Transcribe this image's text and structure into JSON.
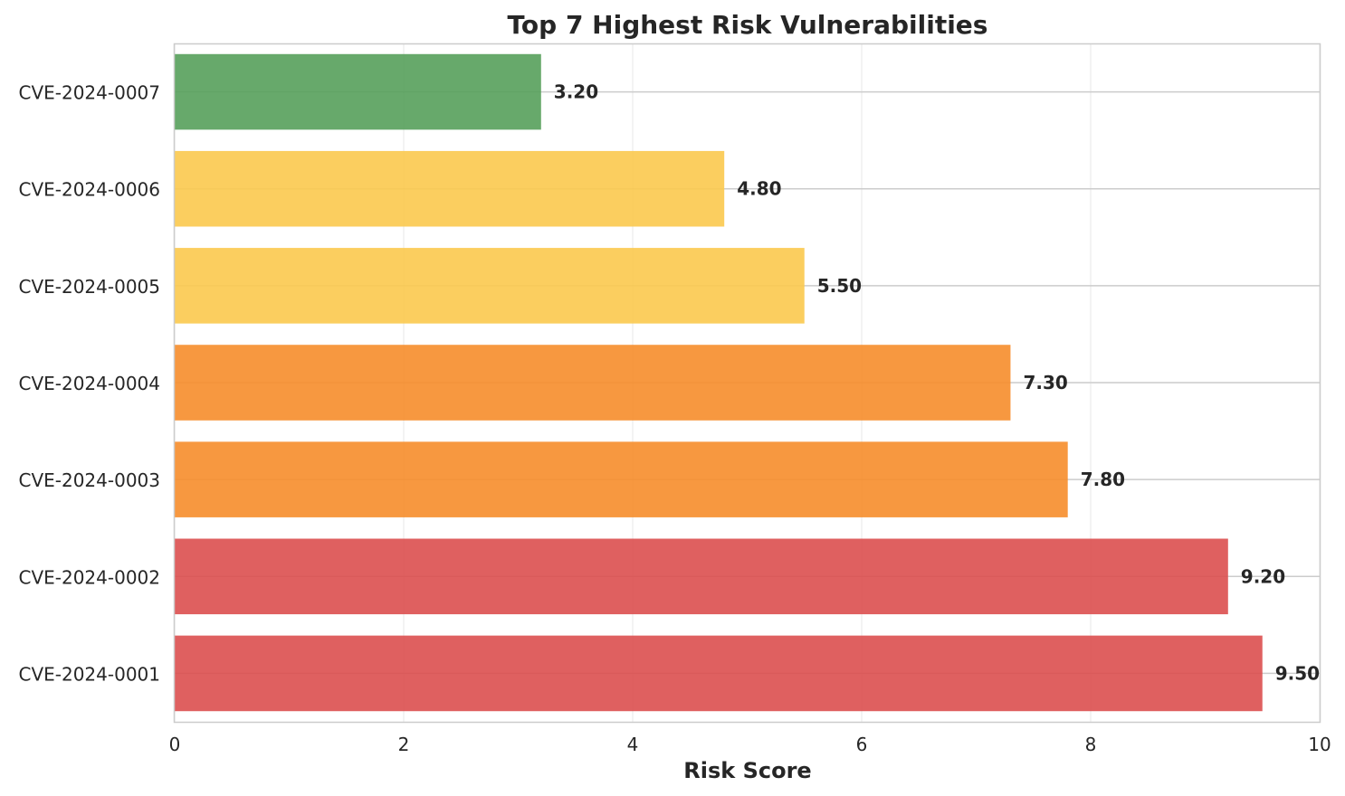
{
  "chart_data": {
    "type": "bar",
    "orientation": "horizontal",
    "title": "Top 7 Highest Risk Vulnerabilities",
    "xlabel": "Risk Score",
    "ylabel": "",
    "xlim": [
      0,
      10
    ],
    "xticks": [
      "0",
      "2",
      "4",
      "6",
      "8",
      "10"
    ],
    "grid": true,
    "categories": [
      "CVE-2024-0007",
      "CVE-2024-0006",
      "CVE-2024-0005",
      "CVE-2024-0004",
      "CVE-2024-0003",
      "CVE-2024-0002",
      "CVE-2024-0001"
    ],
    "values": [
      3.2,
      4.8,
      5.5,
      7.3,
      7.8,
      9.2,
      9.5
    ],
    "value_labels": [
      "3.20",
      "4.80",
      "5.50",
      "7.30",
      "7.80",
      "9.20",
      "9.50"
    ],
    "colors": [
      "#57a05b",
      "#fbc94e",
      "#fbc94e",
      "#f68d2b",
      "#f68d2b",
      "#dc4f4f",
      "#dc4f4f"
    ]
  }
}
